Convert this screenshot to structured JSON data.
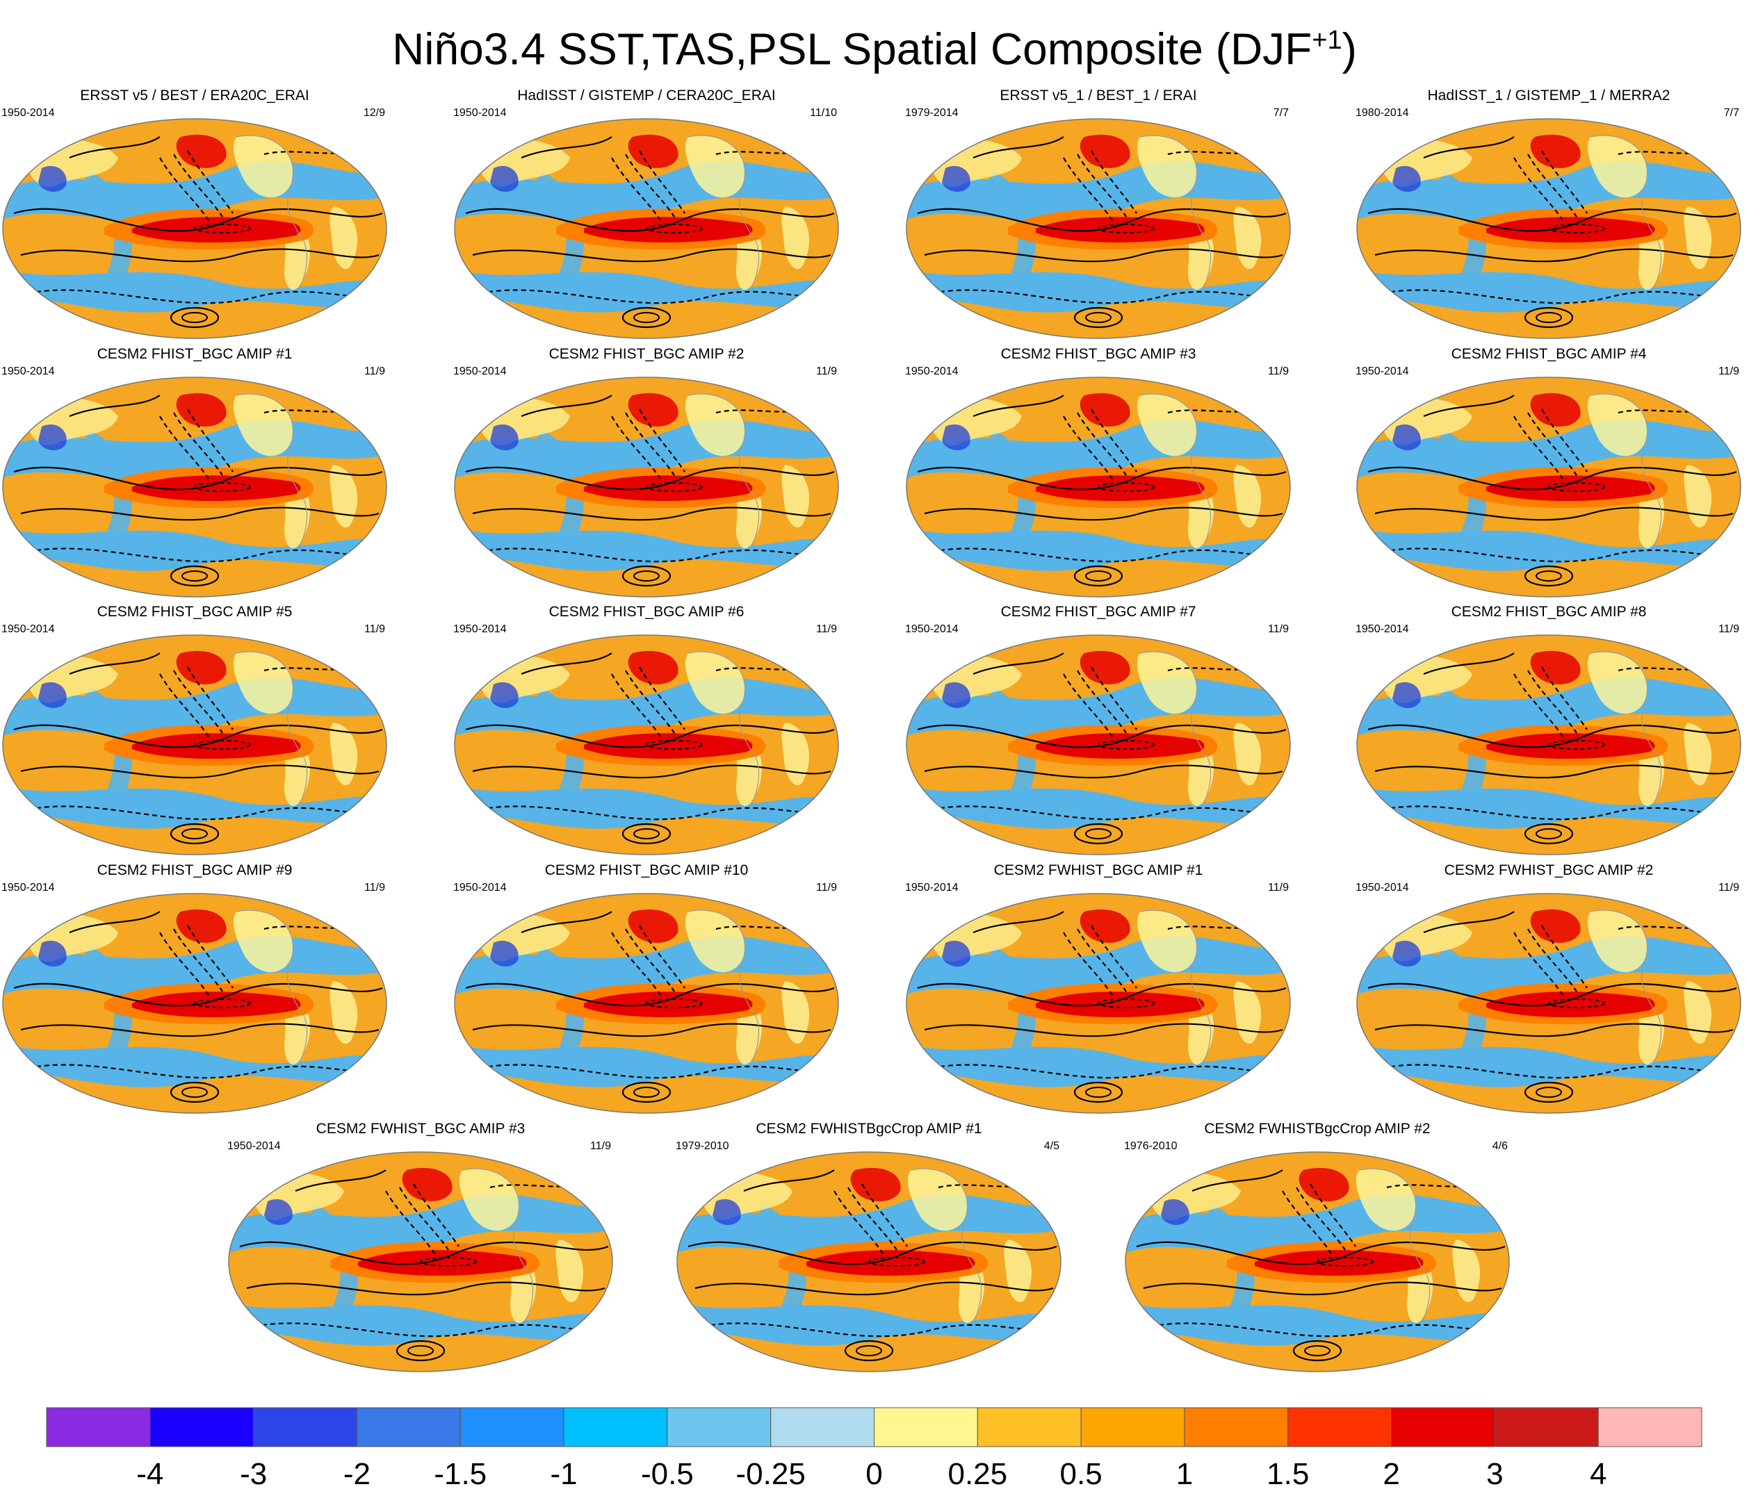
{
  "page": {
    "title_main": "Niño3.4 SST,TAS,PSL Spatial Composite (DJF",
    "title_sup": "+1",
    "title_end": ")"
  },
  "colors": {
    "ocean_warm": "#f5a623",
    "land_light": "#fdf59a",
    "enso_core": "#e60000",
    "cool": "#56b4e9",
    "deep_cool": "#2040d8",
    "contour": "#000000",
    "coast": "#9a9a9a"
  },
  "chart_data": {
    "type": "heatmap",
    "title": "Niño3.4 SST,TAS,PSL Spatial Composite (DJF+1)",
    "panels": [
      {
        "title": "ERSST v5 / BEST / ERA20C_ERAI",
        "years": "1950-2014",
        "count": "12/9"
      },
      {
        "title": "HadISST / GISTEMP / CERA20C_ERAI",
        "years": "1950-2014",
        "count": "11/10"
      },
      {
        "title": "ERSST v5_1 / BEST_1 / ERAI",
        "years": "1979-2014",
        "count": "7/7"
      },
      {
        "title": "HadISST_1 / GISTEMP_1 / MERRA2",
        "years": "1980-2014",
        "count": "7/7"
      },
      {
        "title": "CESM2 FHIST_BGC AMIP #1",
        "years": "1950-2014",
        "count": "11/9"
      },
      {
        "title": "CESM2 FHIST_BGC AMIP #2",
        "years": "1950-2014",
        "count": "11/9"
      },
      {
        "title": "CESM2 FHIST_BGC AMIP #3",
        "years": "1950-2014",
        "count": "11/9"
      },
      {
        "title": "CESM2 FHIST_BGC AMIP #4",
        "years": "1950-2014",
        "count": "11/9"
      },
      {
        "title": "CESM2 FHIST_BGC AMIP #5",
        "years": "1950-2014",
        "count": "11/9"
      },
      {
        "title": "CESM2 FHIST_BGC AMIP #6",
        "years": "1950-2014",
        "count": "11/9"
      },
      {
        "title": "CESM2 FHIST_BGC AMIP #7",
        "years": "1950-2014",
        "count": "11/9"
      },
      {
        "title": "CESM2 FHIST_BGC AMIP #8",
        "years": "1950-2014",
        "count": "11/9"
      },
      {
        "title": "CESM2 FHIST_BGC AMIP #9",
        "years": "1950-2014",
        "count": "11/9"
      },
      {
        "title": "CESM2 FHIST_BGC AMIP #10",
        "years": "1950-2014",
        "count": "11/9"
      },
      {
        "title": "CESM2 FWHIST_BGC AMIP #1",
        "years": "1950-2014",
        "count": "11/9"
      },
      {
        "title": "CESM2 FWHIST_BGC AMIP #2",
        "years": "1950-2014",
        "count": "11/9"
      },
      {
        "title": "CESM2 FWHIST_BGC AMIP #3",
        "years": "1950-2014",
        "count": "11/9"
      },
      {
        "title": "CESM2 FWHISTBgcCrop AMIP #1",
        "years": "1979-2010",
        "count": "4/5"
      },
      {
        "title": "CESM2 FWHISTBgcCrop AMIP #2",
        "years": "1976-2010",
        "count": "4/6"
      }
    ],
    "colorbar": {
      "colors": [
        "#8a2be2",
        "#1a00ff",
        "#2d45e6",
        "#3a78e8",
        "#1e90ff",
        "#00bfff",
        "#6ec6f0",
        "#b0dcf0",
        "#fff68f",
        "#ffc125",
        "#ffa500",
        "#ff7f00",
        "#ff3300",
        "#e60000",
        "#cc1a1a",
        "#ffb6b6"
      ],
      "labels": [
        "-4",
        "-3",
        "-2",
        "-1.5",
        "-1",
        "-0.5",
        "-0.25",
        "0",
        "0.25",
        "0.5",
        "1",
        "1.5",
        "2",
        "3",
        "4"
      ]
    }
  }
}
